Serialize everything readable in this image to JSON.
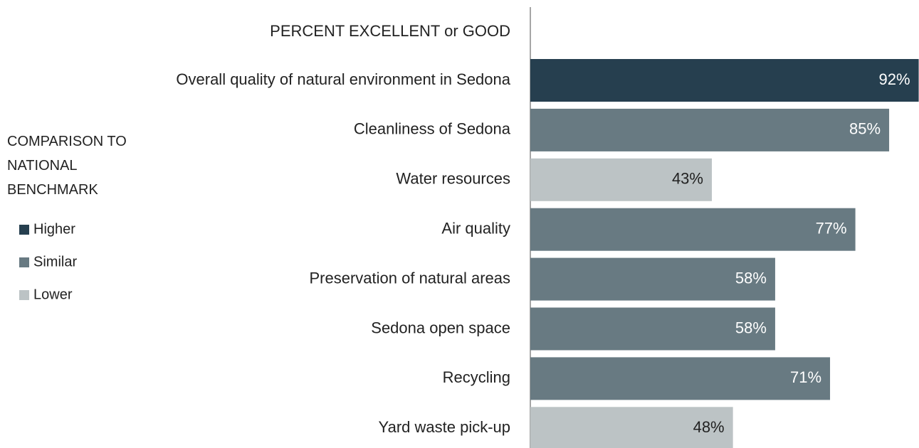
{
  "chart_data": {
    "type": "bar",
    "orientation": "horizontal",
    "title": "PERCENT EXCELLENT or GOOD",
    "categories": [
      "Overall quality of natural environment in Sedona",
      "Cleanliness of Sedona",
      "Water resources",
      "Air quality",
      "Preservation of natural areas",
      "Sedona open space",
      "Recycling",
      "Yard waste pick-up"
    ],
    "values": [
      92,
      85,
      43,
      77,
      58,
      58,
      71,
      48
    ],
    "value_labels": [
      "92%",
      "85%",
      "43%",
      "77%",
      "58%",
      "58%",
      "71%",
      "48%"
    ],
    "colors": [
      "#263f4f",
      "#687a82",
      "#bcc3c5",
      "#687a82",
      "#687a82",
      "#687a82",
      "#687a82",
      "#bcc3c5"
    ],
    "xlim": [
      0,
      100
    ],
    "legend": {
      "title": "COMPARISON TO NATIONAL BENCHMARK",
      "items": [
        {
          "name": "Higher",
          "color": "#263f4f"
        },
        {
          "name": "Similar",
          "color": "#687a82"
        },
        {
          "name": "Lower",
          "color": "#bcc3c5"
        }
      ]
    }
  }
}
